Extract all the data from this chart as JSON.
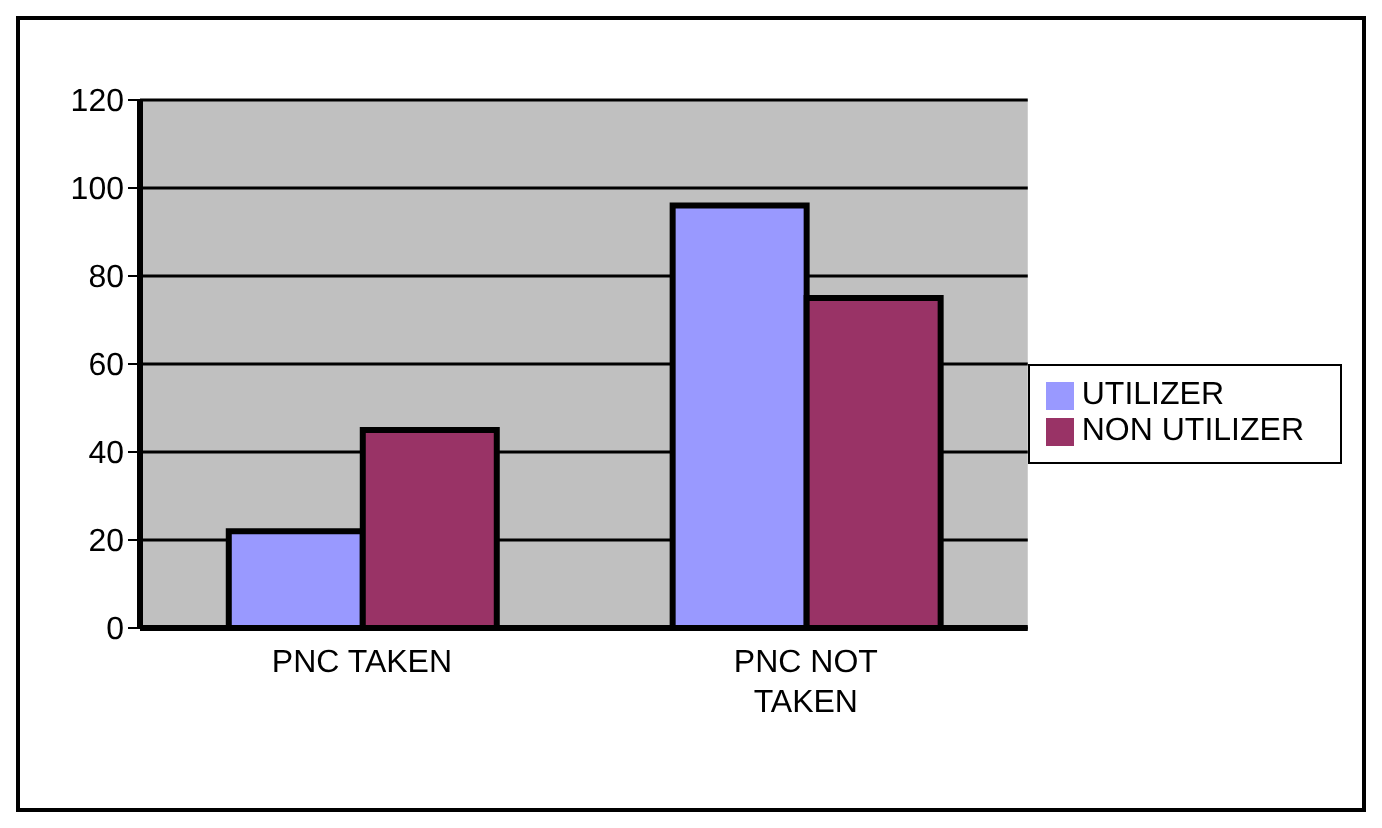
{
  "chart_data": {
    "type": "bar",
    "categories": [
      "PNC TAKEN",
      "PNC NOT TAKEN"
    ],
    "series": [
      {
        "name": "UTILIZER",
        "color": "#9999ff",
        "values": [
          22,
          96
        ]
      },
      {
        "name": "NON UTILIZER",
        "color": "#993366",
        "values": [
          45,
          75
        ]
      }
    ],
    "ylim": [
      0,
      120
    ],
    "yticks": [
      0,
      20,
      40,
      60,
      80,
      100,
      120
    ],
    "grid": "y",
    "legend": "right"
  }
}
